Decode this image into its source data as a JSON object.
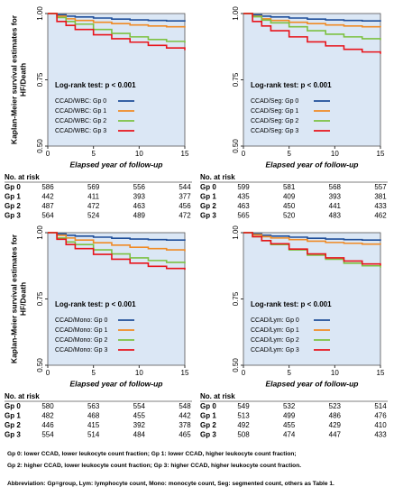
{
  "chart_data": [
    {
      "type": "line",
      "step": true,
      "ylabel": [
        "Kaplan-Meier survival estimates for",
        "HF/Death"
      ],
      "xlabel": "Elapsed year of follow-up",
      "annotation": "Log-rank test: p < 0.001",
      "x": [
        0,
        1,
        2,
        3,
        5,
        7,
        9,
        11,
        13,
        15
      ],
      "xlim": [
        0,
        15
      ],
      "xticks": [
        0,
        5,
        10,
        15
      ],
      "ylim": [
        0.5,
        1
      ],
      "yticks": [
        {
          "value": 0.5,
          "label": "0.50"
        },
        {
          "value": 0.75,
          "label": "0.75"
        },
        {
          "value": 1,
          "label": "1.00"
        }
      ],
      "series": [
        {
          "name": "CCAD/WBC: Gp 0",
          "color": "#1f4e99",
          "values": [
            1,
            0.995,
            0.99,
            0.987,
            0.983,
            0.979,
            0.976,
            0.974,
            0.972,
            0.97
          ]
        },
        {
          "name": "CCAD/WBC: Gp 1",
          "color": "#f08a24",
          "values": [
            1,
            0.99,
            0.98,
            0.974,
            0.967,
            0.962,
            0.957,
            0.953,
            0.95,
            0.947
          ]
        },
        {
          "name": "CCAD/WBC: Gp 2",
          "color": "#7dc142",
          "values": [
            1,
            0.985,
            0.97,
            0.96,
            0.94,
            0.925,
            0.912,
            0.902,
            0.895,
            0.89
          ]
        },
        {
          "name": "CCAD/WBC: Gp 3",
          "color": "#e8141b",
          "values": [
            1,
            0.97,
            0.955,
            0.94,
            0.92,
            0.905,
            0.892,
            0.88,
            0.87,
            0.862
          ]
        }
      ],
      "risk_table": {
        "header": "No. at risk",
        "rows": [
          {
            "label": "Gp 0",
            "values": [
              586,
              569,
              556,
              544
            ]
          },
          {
            "label": "Gp 1",
            "values": [
              442,
              411,
              393,
              377
            ]
          },
          {
            "label": "Gp 2",
            "values": [
              487,
              472,
              463,
              456
            ]
          },
          {
            "label": "Gp 3",
            "values": [
              564,
              524,
              489,
              472
            ]
          }
        ]
      }
    },
    {
      "type": "line",
      "step": true,
      "xlabel": "Elapsed year of follow-up",
      "annotation": "Log-rank test: p < 0.001",
      "x": [
        0,
        1,
        2,
        3,
        5,
        7,
        9,
        11,
        13,
        15
      ],
      "xlim": [
        0,
        15
      ],
      "xticks": [
        0,
        5,
        10,
        15
      ],
      "ylim": [
        0.5,
        1
      ],
      "yticks": [
        {
          "value": 0.5,
          "label": "0.50"
        },
        {
          "value": 0.75,
          "label": "0.75"
        },
        {
          "value": 1,
          "label": "1.00"
        }
      ],
      "series": [
        {
          "name": "CCAD/Seg: Gp 0",
          "color": "#1f4e99",
          "values": [
            1,
            0.995,
            0.99,
            0.987,
            0.983,
            0.979,
            0.976,
            0.974,
            0.972,
            0.97
          ]
        },
        {
          "name": "CCAD/Seg: Gp 1",
          "color": "#f08a24",
          "values": [
            1,
            0.99,
            0.98,
            0.974,
            0.967,
            0.962,
            0.957,
            0.953,
            0.95,
            0.948
          ]
        },
        {
          "name": "CCAD/Seg: Gp 2",
          "color": "#7dc142",
          "values": [
            1,
            0.988,
            0.975,
            0.965,
            0.95,
            0.935,
            0.922,
            0.912,
            0.905,
            0.9
          ]
        },
        {
          "name": "CCAD/Seg: Gp 3",
          "color": "#e8141b",
          "values": [
            1,
            0.97,
            0.953,
            0.935,
            0.912,
            0.893,
            0.878,
            0.865,
            0.855,
            0.848
          ]
        }
      ],
      "risk_table": {
        "header": "No. at risk",
        "rows": [
          {
            "label": "Gp 0",
            "values": [
              599,
              581,
              568,
              557
            ]
          },
          {
            "label": "Gp 1",
            "values": [
              435,
              409,
              393,
              381
            ]
          },
          {
            "label": "Gp 2",
            "values": [
              463,
              450,
              441,
              433
            ]
          },
          {
            "label": "Gp 3",
            "values": [
              565,
              520,
              483,
              462
            ]
          }
        ]
      }
    },
    {
      "type": "line",
      "step": true,
      "ylabel": [
        "Kaplan-Meier survival estimates for",
        "HF/Death"
      ],
      "xlabel": "Elapsed year of follow-up",
      "annotation": "Log-rank test: p < 0.001",
      "x": [
        0,
        1,
        2,
        3,
        5,
        7,
        9,
        11,
        13,
        15
      ],
      "xlim": [
        0,
        15
      ],
      "xticks": [
        0,
        5,
        10,
        15
      ],
      "ylim": [
        0.5,
        1
      ],
      "yticks": [
        {
          "value": 0.5,
          "label": "0.50"
        },
        {
          "value": 0.75,
          "label": "0.75"
        },
        {
          "value": 1,
          "label": "1.00"
        }
      ],
      "series": [
        {
          "name": "CCAD/Mono: Gp 0",
          "color": "#1f4e99",
          "values": [
            1,
            0.995,
            0.99,
            0.987,
            0.983,
            0.979,
            0.976,
            0.974,
            0.972,
            0.97
          ]
        },
        {
          "name": "CCAD/Mono: Gp 1",
          "color": "#f08a24",
          "values": [
            1,
            0.99,
            0.98,
            0.972,
            0.962,
            0.953,
            0.945,
            0.94,
            0.935,
            0.93
          ]
        },
        {
          "name": "CCAD/Mono: Gp 2",
          "color": "#7dc142",
          "values": [
            1,
            0.98,
            0.965,
            0.955,
            0.935,
            0.92,
            0.905,
            0.895,
            0.888,
            0.884
          ]
        },
        {
          "name": "CCAD/Mono: Gp 3",
          "color": "#e8141b",
          "values": [
            1,
            0.975,
            0.955,
            0.94,
            0.918,
            0.9,
            0.885,
            0.873,
            0.865,
            0.86
          ]
        }
      ],
      "risk_table": {
        "header": "No. at risk",
        "rows": [
          {
            "label": "Gp 0",
            "values": [
              580,
              563,
              554,
              548
            ]
          },
          {
            "label": "Gp 1",
            "values": [
              482,
              468,
              455,
              442
            ]
          },
          {
            "label": "Gp 2",
            "values": [
              446,
              415,
              392,
              378
            ]
          },
          {
            "label": "Gp 3",
            "values": [
              554,
              514,
              484,
              465
            ]
          }
        ]
      }
    },
    {
      "type": "line",
      "step": true,
      "xlabel": "Elapsed year of follow-up",
      "annotation": "Log-rank test: p < 0.001",
      "x": [
        0,
        1,
        2,
        3,
        5,
        7,
        9,
        11,
        13,
        15
      ],
      "xlim": [
        0,
        15
      ],
      "xticks": [
        0,
        5,
        10,
        15
      ],
      "ylim": [
        0.5,
        1
      ],
      "yticks": [
        {
          "value": 0.5,
          "label": "0.50"
        },
        {
          "value": 0.75,
          "label": "0.75"
        },
        {
          "value": 1,
          "label": "1.00"
        }
      ],
      "series": [
        {
          "name": "CCAD/Lym: Gp 0",
          "color": "#1f4e99",
          "values": [
            1,
            0.995,
            0.99,
            0.987,
            0.983,
            0.979,
            0.976,
            0.974,
            0.972,
            0.97
          ]
        },
        {
          "name": "CCAD/Lym: Gp 1",
          "color": "#f08a24",
          "values": [
            1,
            0.992,
            0.985,
            0.98,
            0.974,
            0.968,
            0.963,
            0.96,
            0.957,
            0.955
          ]
        },
        {
          "name": "CCAD/Lym: Gp 2",
          "color": "#7dc142",
          "values": [
            1,
            0.985,
            0.97,
            0.955,
            0.935,
            0.915,
            0.9,
            0.885,
            0.875,
            0.868
          ]
        },
        {
          "name": "CCAD/Lym: Gp 3",
          "color": "#e8141b",
          "values": [
            1,
            0.985,
            0.97,
            0.958,
            0.938,
            0.92,
            0.905,
            0.893,
            0.882,
            0.876
          ]
        }
      ],
      "risk_table": {
        "header": "No. at risk",
        "rows": [
          {
            "label": "Gp 0",
            "values": [
              549,
              532,
              523,
              514
            ]
          },
          {
            "label": "Gp 1",
            "values": [
              513,
              499,
              486,
              476
            ]
          },
          {
            "label": "Gp 2",
            "values": [
              492,
              455,
              429,
              410
            ]
          },
          {
            "label": "Gp 3",
            "values": [
              508,
              474,
              447,
              433
            ]
          }
        ]
      }
    }
  ],
  "footnotes": [
    "Gp 0: lower CCAD, lower leukocyte count fraction; Gp 1: lower CCAD, higher leukocyte count fraction;",
    "Gp 2: higher CCAD, lower leukocyte count fraction; Gp 3: higher CCAD, higher leukocyte count fraction.",
    "Abbreviation: Gp=group, Lym: lymphocyte count, Mono: monocyte count, Seg: segmented count, others as Table 1."
  ]
}
